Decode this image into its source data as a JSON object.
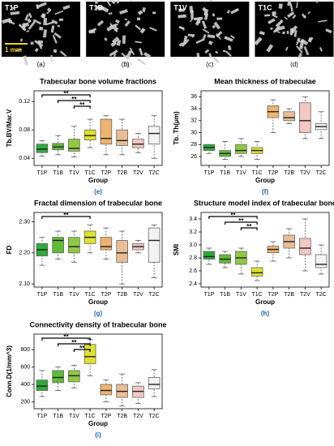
{
  "images": [
    {
      "label": "T1P",
      "panel": "(a)"
    },
    {
      "label": "T1B",
      "panel": "(b)"
    },
    {
      "label": "T1V",
      "panel": "(c)"
    },
    {
      "label": "T1C",
      "panel": "(d)"
    }
  ],
  "scale_bar": "1 mm",
  "chart_data": [
    {
      "type": "box",
      "panel_label": "(e)",
      "title": "Trabecular bone volume fractions",
      "xlabel": "Group",
      "ylabel": "Tb.BV/Mar.V",
      "categories": [
        "T1P",
        "T1B",
        "T1V",
        "T1C",
        "T2P",
        "T2B",
        "T2V",
        "T2C"
      ],
      "colors": [
        "#2eaa3a",
        "#5fbb35",
        "#8fc941",
        "#dde22a",
        "#eeb36f",
        "#e9bd96",
        "#f3c8c2",
        "#f2f2f2"
      ],
      "ylim": [
        0.03,
        0.135
      ],
      "yticks": [
        0.04,
        0.08,
        0.12
      ],
      "boxes": [
        {
          "min": 0.043,
          "q1": 0.048,
          "median": 0.053,
          "q3": 0.06,
          "max": 0.065
        },
        {
          "min": 0.045,
          "q1": 0.052,
          "median": 0.056,
          "q3": 0.061,
          "max": 0.072
        },
        {
          "min": 0.042,
          "q1": 0.05,
          "median": 0.054,
          "q3": 0.067,
          "max": 0.085
        },
        {
          "min": 0.055,
          "q1": 0.066,
          "median": 0.072,
          "q3": 0.08,
          "max": 0.095
        },
        {
          "min": 0.045,
          "q1": 0.06,
          "median": 0.068,
          "q3": 0.095,
          "max": 0.1
        },
        {
          "min": 0.045,
          "q1": 0.058,
          "median": 0.065,
          "q3": 0.08,
          "max": 0.095
        },
        {
          "min": 0.048,
          "q1": 0.055,
          "median": 0.06,
          "q3": 0.067,
          "max": 0.075
        },
        {
          "min": 0.04,
          "q1": 0.06,
          "median": 0.075,
          "q3": 0.085,
          "max": 0.1
        }
      ],
      "annotations": [
        {
          "from": "T1P",
          "to": "T1C",
          "label": "**"
        },
        {
          "from": "T1B",
          "to": "T1C",
          "label": "**"
        },
        {
          "from": "T1V",
          "to": "T1C",
          "label": "**"
        }
      ]
    },
    {
      "type": "box",
      "panel_label": "(f)",
      "title": "Mean thickness of trabeculae",
      "xlabel": "Group",
      "ylabel": "Tb. Th(μm)",
      "categories": [
        "T1P",
        "T1B",
        "T1V",
        "T1C",
        "T2P",
        "T2B",
        "T2V",
        "T2C"
      ],
      "colors": [
        "#2eaa3a",
        "#5fbb35",
        "#8fc941",
        "#dde22a",
        "#eeb36f",
        "#e9bd96",
        "#f3c8c2",
        "#f2f2f2"
      ],
      "ylim": [
        24.5,
        37
      ],
      "yticks": [
        26,
        28,
        30,
        32,
        34,
        36
      ],
      "boxes": [
        {
          "min": 26.5,
          "q1": 27,
          "median": 27.5,
          "q3": 28,
          "max": 28
        },
        {
          "min": 25.5,
          "q1": 26,
          "median": 26.5,
          "q3": 27,
          "max": 28.5
        },
        {
          "min": 26,
          "q1": 26.5,
          "median": 27,
          "q3": 28,
          "max": 29
        },
        {
          "min": 25.5,
          "q1": 26.5,
          "median": 27,
          "q3": 27.5,
          "max": 28.5
        },
        {
          "min": 30,
          "q1": 32.5,
          "median": 33.5,
          "q3": 34.5,
          "max": 35.5
        },
        {
          "min": 31.5,
          "q1": 32,
          "median": 32.5,
          "q3": 33.5,
          "max": 34
        },
        {
          "min": 29,
          "q1": 30,
          "median": 32,
          "q3": 35,
          "max": 36
        },
        {
          "min": 29,
          "q1": 30.5,
          "median": 31,
          "q3": 31.5,
          "max": 33.5
        }
      ],
      "annotations": []
    },
    {
      "type": "box",
      "panel_label": "(g)",
      "title": "Fractal dimension of trabecular bone",
      "xlabel": "Group",
      "ylabel": "FD",
      "categories": [
        "T1P",
        "T1B",
        "T1V",
        "T1C",
        "T2P",
        "T2B",
        "T2V",
        "T2C"
      ],
      "colors": [
        "#2eaa3a",
        "#5fbb35",
        "#8fc941",
        "#dde22a",
        "#eeb36f",
        "#e9bd96",
        "#f3c8c2",
        "#f2f2f2"
      ],
      "ylim": [
        2.09,
        2.33
      ],
      "yticks": [
        {
          "value": 2.1,
          "label": "2.10"
        },
        {
          "value": 2.2,
          "label": "2.20"
        },
        {
          "value": 2.3,
          "label": "2.30"
        }
      ],
      "boxes": [
        {
          "min": 2.16,
          "q1": 2.19,
          "median": 2.21,
          "q3": 2.23,
          "max": 2.25
        },
        {
          "min": 2.18,
          "q1": 2.2,
          "median": 2.24,
          "q3": 2.25,
          "max": 2.27
        },
        {
          "min": 2.17,
          "q1": 2.2,
          "median": 2.22,
          "q3": 2.25,
          "max": 2.27
        },
        {
          "min": 2.2,
          "q1": 2.23,
          "median": 2.25,
          "q3": 2.27,
          "max": 2.29
        },
        {
          "min": 2.18,
          "q1": 2.21,
          "median": 2.22,
          "q3": 2.25,
          "max": 2.28
        },
        {
          "min": 2.1,
          "q1": 2.17,
          "median": 2.2,
          "q3": 2.24,
          "max": 2.27
        },
        {
          "min": 2.2,
          "q1": 2.21,
          "median": 2.22,
          "q3": 2.23,
          "max": 2.24
        },
        {
          "min": 2.12,
          "q1": 2.17,
          "median": 2.24,
          "q3": 2.28,
          "max": 2.29
        }
      ],
      "annotations": [
        {
          "from": "T1P",
          "to": "T1C",
          "label": "**"
        }
      ]
    },
    {
      "type": "box",
      "panel_label": "(h)",
      "title": "Structure model index of trabecular bone",
      "xlabel": "Group",
      "ylabel": "SMI",
      "categories": [
        "T1P",
        "T1B",
        "T1V",
        "T1C",
        "T2P",
        "T2B",
        "T2V",
        "T2C"
      ],
      "colors": [
        "#2eaa3a",
        "#5fbb35",
        "#8fc941",
        "#dde22a",
        "#eeb36f",
        "#e9bd96",
        "#f3c8c2",
        "#f2f2f2"
      ],
      "ylim": [
        2.35,
        3.5
      ],
      "yticks": [
        2.4,
        2.6,
        2.8,
        {
          "value": 3,
          "label": "3.0"
        },
        3.2,
        3.4
      ],
      "boxes": [
        {
          "min": 2.7,
          "q1": 2.78,
          "median": 2.82,
          "q3": 2.9,
          "max": 2.95
        },
        {
          "min": 2.65,
          "q1": 2.72,
          "median": 2.78,
          "q3": 2.85,
          "max": 2.9
        },
        {
          "min": 2.55,
          "q1": 2.7,
          "median": 2.8,
          "q3": 2.9,
          "max": 2.95
        },
        {
          "min": 2.45,
          "q1": 2.52,
          "median": 2.57,
          "q3": 2.65,
          "max": 2.75
        },
        {
          "min": 2.75,
          "q1": 2.88,
          "median": 2.93,
          "q3": 2.98,
          "max": 3.05
        },
        {
          "min": 2.8,
          "q1": 2.95,
          "median": 3.05,
          "q3": 3.15,
          "max": 3.25
        },
        {
          "min": 2.6,
          "q1": 2.85,
          "median": 2.95,
          "q3": 3.1,
          "max": 3.4
        },
        {
          "min": 2.55,
          "q1": 2.65,
          "median": 2.7,
          "q3": 2.85,
          "max": 3
        }
      ],
      "annotations": [
        {
          "from": "T1P",
          "to": "T1C",
          "label": "**"
        },
        {
          "from": "T1B",
          "to": "T1C",
          "label": "**"
        },
        {
          "from": "T1V",
          "to": "T1C",
          "label": "**"
        }
      ]
    },
    {
      "type": "box",
      "panel_label": "(i)",
      "title": "Connectivity density of trabecular bone",
      "xlabel": "Group",
      "ylabel": "Conn.D(1/mm^3)",
      "categories": [
        "T1P",
        "T1B",
        "T1V",
        "T1C",
        "T2P",
        "T2B",
        "T2V",
        "T2C"
      ],
      "colors": [
        "#2eaa3a",
        "#5fbb35",
        "#8fc941",
        "#dde22a",
        "#eeb36f",
        "#e9bd96",
        "#f3c8c2",
        "#f2f2f2"
      ],
      "ylim": [
        120,
        980
      ],
      "yticks": [
        200,
        400,
        600,
        800
      ],
      "boxes": [
        {
          "min": 260,
          "q1": 330,
          "median": 380,
          "q3": 450,
          "max": 560
        },
        {
          "min": 330,
          "q1": 420,
          "median": 480,
          "q3": 560,
          "max": 600
        },
        {
          "min": 360,
          "q1": 430,
          "median": 500,
          "q3": 560,
          "max": 620
        },
        {
          "min": 500,
          "q1": 640,
          "median": 720,
          "q3": 860,
          "max": 920
        },
        {
          "min": 200,
          "q1": 280,
          "median": 330,
          "q3": 400,
          "max": 450
        },
        {
          "min": 150,
          "q1": 250,
          "median": 320,
          "q3": 400,
          "max": 520
        },
        {
          "min": 180,
          "q1": 250,
          "median": 320,
          "q3": 380,
          "max": 420
        },
        {
          "min": 260,
          "q1": 350,
          "median": 400,
          "q3": 480,
          "max": 570
        }
      ],
      "annotations": [
        {
          "from": "T1P",
          "to": "T1C",
          "label": "**"
        },
        {
          "from": "T1B",
          "to": "T1C",
          "label": "**"
        },
        {
          "from": "T1V",
          "to": "T1C",
          "label": "**"
        }
      ]
    }
  ]
}
